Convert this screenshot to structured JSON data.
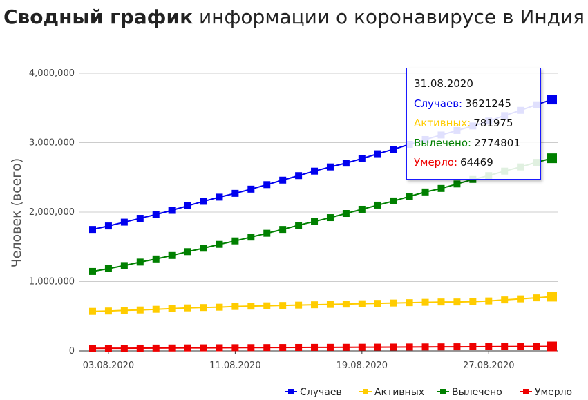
{
  "title": {
    "bold": "Сводный график",
    "rest": " информации о коронавирусе в Индия"
  },
  "chart_data": {
    "type": "line",
    "ylabel": "Человек (всего)",
    "xlabel": "",
    "ylim": [
      0,
      4000000
    ],
    "yticks": [
      "0",
      "1,000,000",
      "2,000,000",
      "3,000,000",
      "4,000,000"
    ],
    "ytick_values": [
      0,
      1000000,
      2000000,
      3000000,
      4000000
    ],
    "xtick_labels": [
      "03.08.2020",
      "11.08.2020",
      "19.08.2020",
      "27.08.2020"
    ],
    "x": [
      "02.08.2020",
      "03.08.2020",
      "04.08.2020",
      "05.08.2020",
      "06.08.2020",
      "07.08.2020",
      "08.08.2020",
      "09.08.2020",
      "10.08.2020",
      "11.08.2020",
      "12.08.2020",
      "13.08.2020",
      "14.08.2020",
      "15.08.2020",
      "16.08.2020",
      "17.08.2020",
      "18.08.2020",
      "19.08.2020",
      "20.08.2020",
      "21.08.2020",
      "22.08.2020",
      "23.08.2020",
      "24.08.2020",
      "25.08.2020",
      "26.08.2020",
      "27.08.2020",
      "28.08.2020",
      "29.08.2020",
      "30.08.2020",
      "31.08.2020"
    ],
    "series": [
      {
        "name": "Случаев",
        "color": "#0000ee",
        "values": [
          1750000,
          1800000,
          1855000,
          1910000,
          1965000,
          2025000,
          2090000,
          2155000,
          2215000,
          2270000,
          2330000,
          2395000,
          2460000,
          2525000,
          2590000,
          2650000,
          2705000,
          2770000,
          2840000,
          2905000,
          2975000,
          3045000,
          3110000,
          3175000,
          3240000,
          3310000,
          3390000,
          3465000,
          3545000,
          3621245
        ]
      },
      {
        "name": "Активных",
        "color": "#ffcc00",
        "values": [
          570000,
          575000,
          585000,
          590000,
          600000,
          610000,
          620000,
          625000,
          630000,
          640000,
          645000,
          650000,
          655000,
          660000,
          665000,
          670000,
          675000,
          680000,
          685000,
          690000,
          695000,
          700000,
          705000,
          705000,
          710000,
          720000,
          735000,
          750000,
          765000,
          781975
        ]
      },
      {
        "name": "Вылечено",
        "color": "#008000",
        "values": [
          1145000,
          1185000,
          1230000,
          1280000,
          1325000,
          1375000,
          1430000,
          1480000,
          1535000,
          1585000,
          1640000,
          1695000,
          1750000,
          1810000,
          1865000,
          1920000,
          1980000,
          2040000,
          2100000,
          2160000,
          2225000,
          2290000,
          2340000,
          2405000,
          2470000,
          2525000,
          2590000,
          2650000,
          2715000,
          2774801
        ]
      },
      {
        "name": "Умерло",
        "color": "#ee0000",
        "values": [
          37000,
          38000,
          39000,
          40000,
          41000,
          42000,
          43000,
          44000,
          45000,
          46000,
          47000,
          48000,
          49000,
          50000,
          51000,
          51500,
          52000,
          53000,
          54000,
          55000,
          56000,
          57000,
          58000,
          59000,
          60000,
          61000,
          62000,
          63000,
          63500,
          64469
        ]
      }
    ],
    "grid": true,
    "legend_position": "bottom-right"
  },
  "tooltip": {
    "date": "31.08.2020",
    "rows": [
      {
        "label": "Случаев:",
        "value": "3621245",
        "color": "#0000ee"
      },
      {
        "label": "Активных:",
        "value": "781975",
        "color": "#ffcc00"
      },
      {
        "label": "Вылечено:",
        "value": "2774801",
        "color": "#008000"
      },
      {
        "label": "Умерло:",
        "value": "64469",
        "color": "#ee0000"
      }
    ]
  }
}
